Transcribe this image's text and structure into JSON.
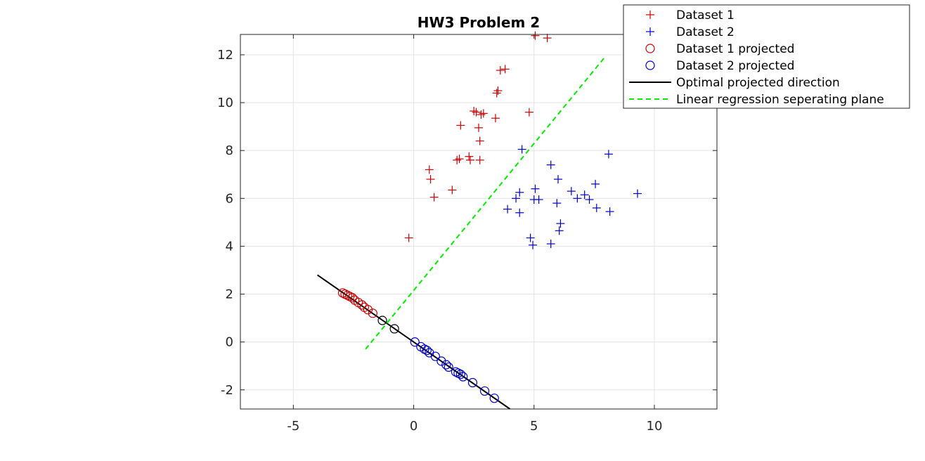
{
  "chart_data": {
    "type": "scatter",
    "title": "HW3 Problem 2",
    "xlabel": "",
    "ylabel": "",
    "xlim": [
      -7.2,
      12.6
    ],
    "ylim": [
      -2.8,
      12.85
    ],
    "xticks": [
      -5,
      0,
      5,
      10
    ],
    "yticks": [
      -2,
      0,
      2,
      4,
      6,
      8,
      10,
      12
    ],
    "grid": true,
    "legend_position": "top-right",
    "colors": {
      "dataset1": "#cc0000",
      "dataset2": "#0000cc",
      "projection": "#000000",
      "separator": "#00ee00"
    },
    "series": [
      {
        "name": "Dataset 1",
        "marker": "plus",
        "color": "#cc0000",
        "points": [
          [
            -0.2,
            4.35
          ],
          [
            0.7,
            6.8
          ],
          [
            0.65,
            7.2
          ],
          [
            0.85,
            6.05
          ],
          [
            1.6,
            6.35
          ],
          [
            1.8,
            7.6
          ],
          [
            1.9,
            7.65
          ],
          [
            1.95,
            9.05
          ],
          [
            2.3,
            7.75
          ],
          [
            2.35,
            7.6
          ],
          [
            2.5,
            9.65
          ],
          [
            2.6,
            9.6
          ],
          [
            2.7,
            8.95
          ],
          [
            2.75,
            7.6
          ],
          [
            2.75,
            8.4
          ],
          [
            2.8,
            9.5
          ],
          [
            2.9,
            9.55
          ],
          [
            3.4,
            9.35
          ],
          [
            3.45,
            10.4
          ],
          [
            3.5,
            10.5
          ],
          [
            3.6,
            11.35
          ],
          [
            3.8,
            11.4
          ],
          [
            4.8,
            9.6
          ],
          [
            5.05,
            12.8
          ],
          [
            5.55,
            12.7
          ]
        ]
      },
      {
        "name": "Dataset 2",
        "marker": "plus",
        "color": "#0000cc",
        "points": [
          [
            3.9,
            5.55
          ],
          [
            4.25,
            6.0
          ],
          [
            4.4,
            6.25
          ],
          [
            4.4,
            5.4
          ],
          [
            4.5,
            8.05
          ],
          [
            4.85,
            4.35
          ],
          [
            4.95,
            4.05
          ],
          [
            5.0,
            5.95
          ],
          [
            5.05,
            6.4
          ],
          [
            5.2,
            5.95
          ],
          [
            5.7,
            4.1
          ],
          [
            5.7,
            7.4
          ],
          [
            5.95,
            5.8
          ],
          [
            6.0,
            6.8
          ],
          [
            6.05,
            4.65
          ],
          [
            6.1,
            4.95
          ],
          [
            6.55,
            6.3
          ],
          [
            6.8,
            6.0
          ],
          [
            7.1,
            6.15
          ],
          [
            7.3,
            5.95
          ],
          [
            7.55,
            6.6
          ],
          [
            7.6,
            5.6
          ],
          [
            8.1,
            7.85
          ],
          [
            8.15,
            5.45
          ],
          [
            9.3,
            6.2
          ]
        ]
      },
      {
        "name": "Dataset 1 projected",
        "marker": "circle",
        "color": "#cc0000",
        "points": [
          [
            -2.95,
            2.05
          ],
          [
            -2.85,
            2.0
          ],
          [
            -2.75,
            1.95
          ],
          [
            -2.65,
            1.9
          ],
          [
            -2.55,
            1.85
          ],
          [
            -2.45,
            1.75
          ],
          [
            -2.3,
            1.65
          ],
          [
            -2.15,
            1.55
          ],
          [
            -2.05,
            1.45
          ],
          [
            -1.9,
            1.35
          ],
          [
            -1.7,
            1.2
          ]
        ]
      },
      {
        "name": "Dataset 2 projected",
        "marker": "circle",
        "color": "#0000cc",
        "points": [
          [
            0.05,
            0.0
          ],
          [
            0.3,
            -0.2
          ],
          [
            0.45,
            -0.3
          ],
          [
            0.55,
            -0.35
          ],
          [
            0.65,
            -0.45
          ],
          [
            0.9,
            -0.6
          ],
          [
            1.15,
            -0.8
          ],
          [
            1.35,
            -0.95
          ],
          [
            1.45,
            -1.05
          ],
          [
            1.75,
            -1.25
          ],
          [
            1.85,
            -1.3
          ],
          [
            1.95,
            -1.35
          ],
          [
            2.05,
            -1.45
          ],
          [
            2.45,
            -1.7
          ],
          [
            2.95,
            -2.05
          ],
          [
            3.35,
            -2.35
          ]
        ]
      },
      {
        "name": "Optimal projected direction",
        "marker": "line",
        "color": "#000000",
        "points": [
          [
            -4.0,
            2.8
          ],
          [
            4.0,
            -2.8
          ]
        ],
        "extra_circles": [
          [
            -1.3,
            0.9
          ],
          [
            -0.8,
            0.55
          ]
        ]
      },
      {
        "name": "Linear regression seperating plane",
        "marker": "dashed-line",
        "color": "#00ee00",
        "points": [
          [
            -2.0,
            -0.3
          ],
          [
            7.9,
            11.85
          ]
        ]
      }
    ]
  }
}
